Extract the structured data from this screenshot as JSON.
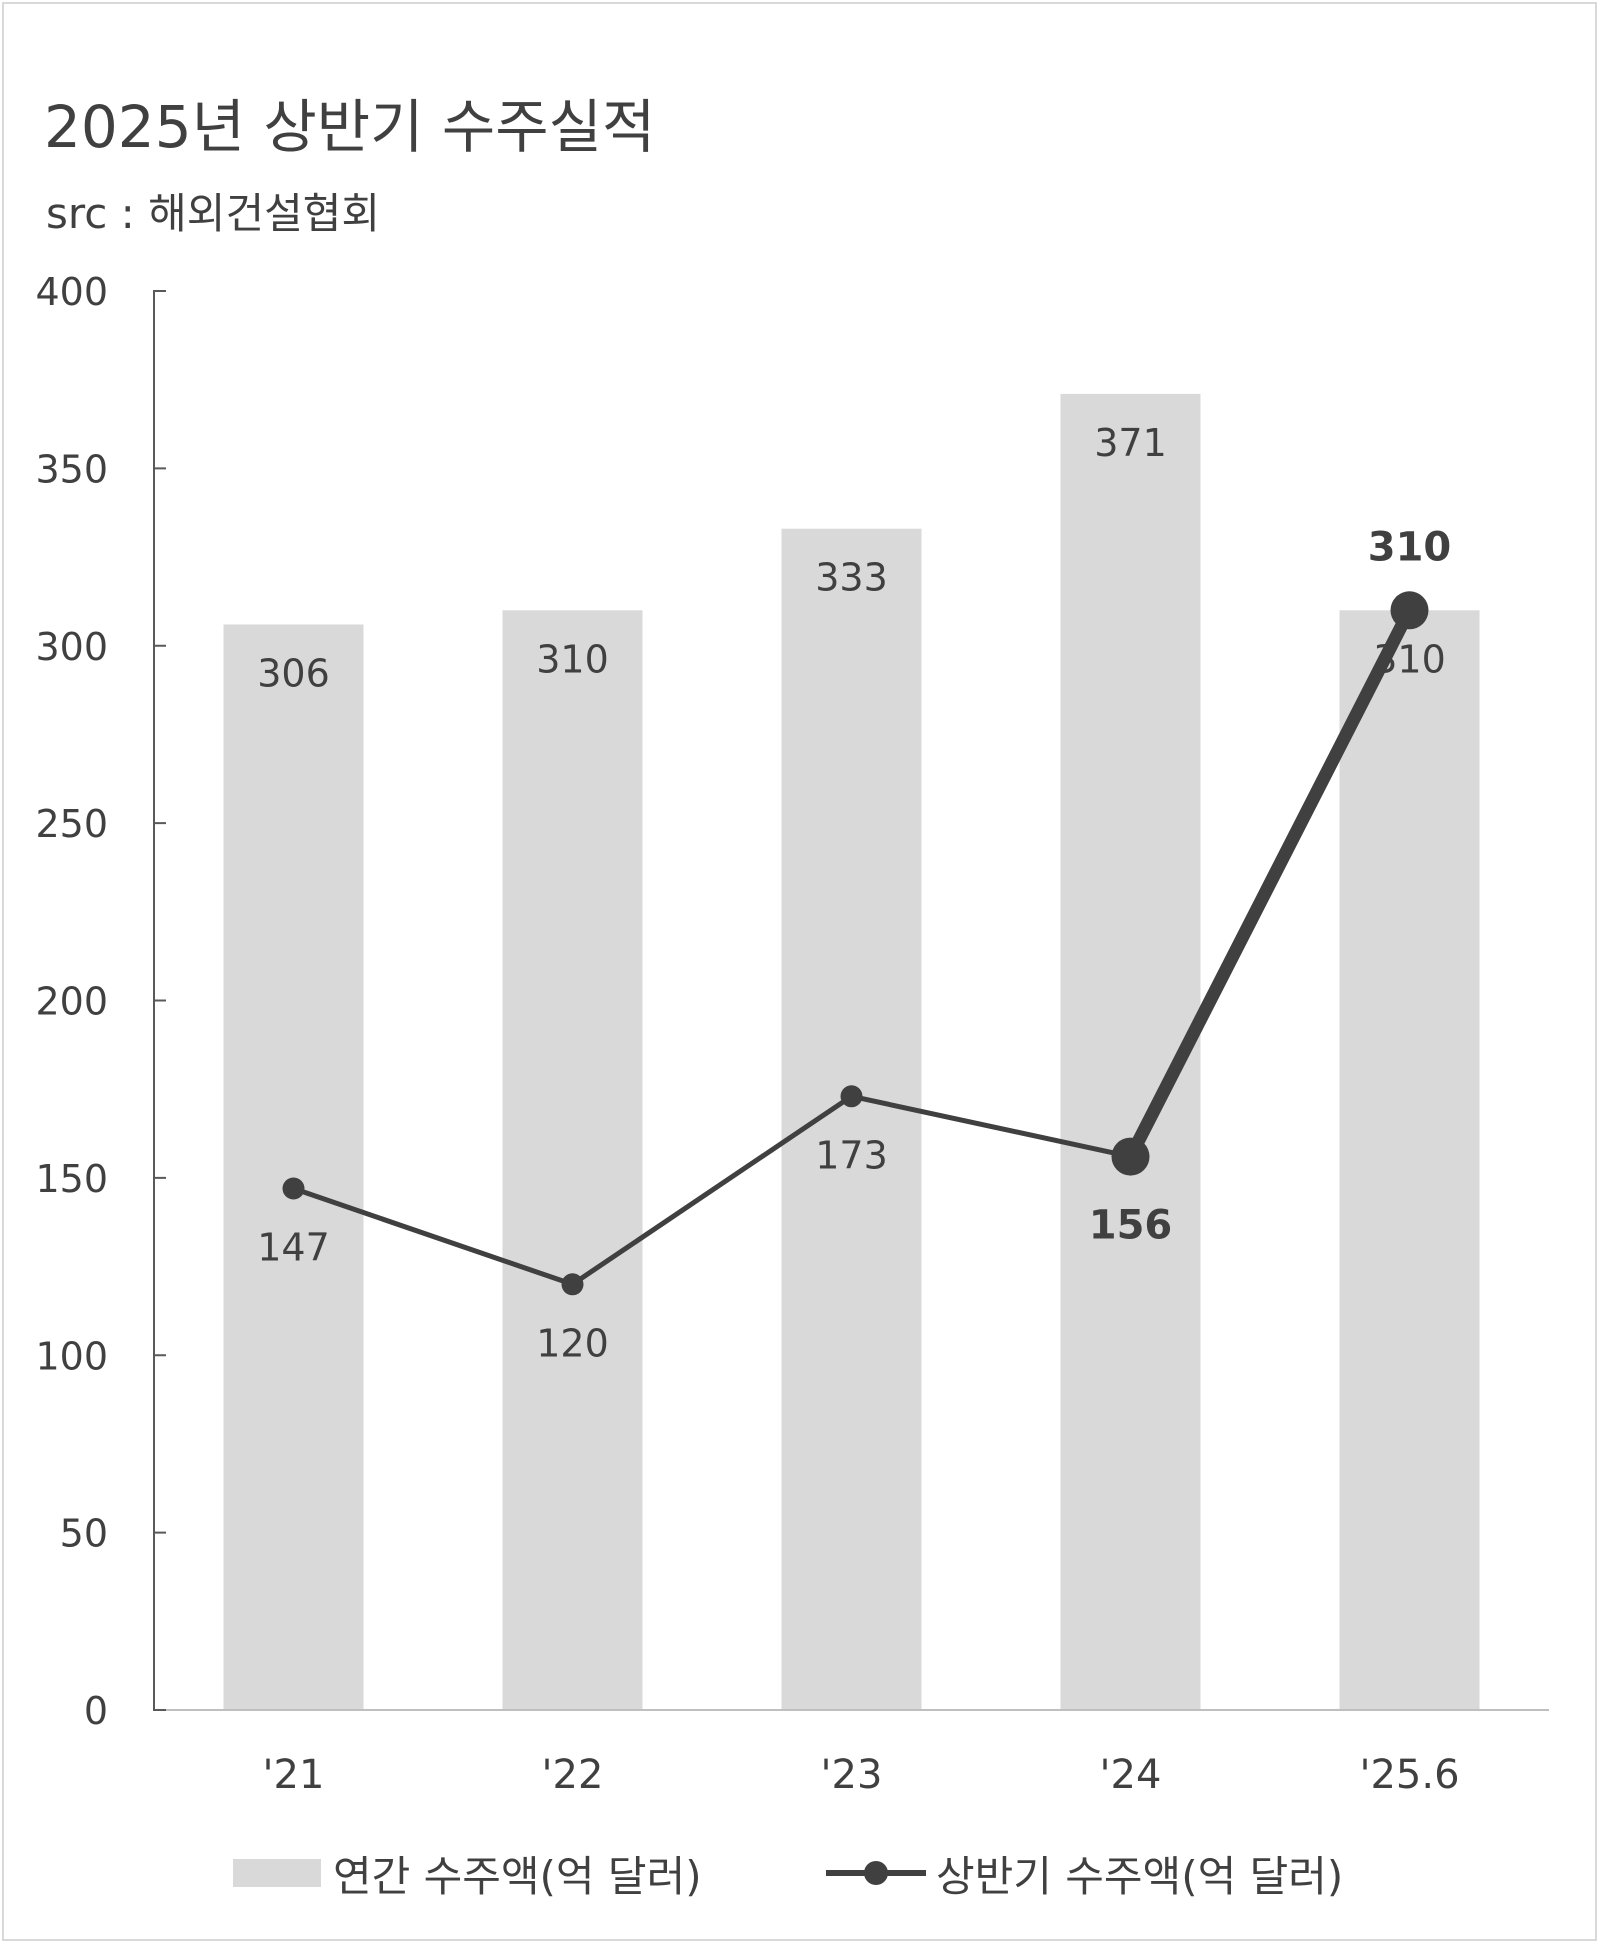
{
  "chart_data": {
    "type": "bar",
    "title": "2025년 상반기 수주실적",
    "subtitle": "src : 해외건설협회",
    "categories": [
      "'21",
      "'22",
      "'23",
      "'24",
      "'25.6"
    ],
    "ylim": [
      0,
      400
    ],
    "yticks": [
      0,
      50,
      100,
      150,
      200,
      250,
      300,
      350,
      400
    ],
    "grid": false,
    "legend_position": "bottom",
    "series": [
      {
        "name": "연간 수주액(억 달러)",
        "type": "bar",
        "color": "#d9d9d9",
        "values": [
          306,
          310,
          333,
          371,
          310
        ]
      },
      {
        "name": "상반기 수주액(억 달러)",
        "type": "line",
        "color": "#404040",
        "values": [
          147,
          120,
          173,
          156,
          310
        ],
        "emphasized_points": [
          3,
          4
        ]
      }
    ]
  }
}
